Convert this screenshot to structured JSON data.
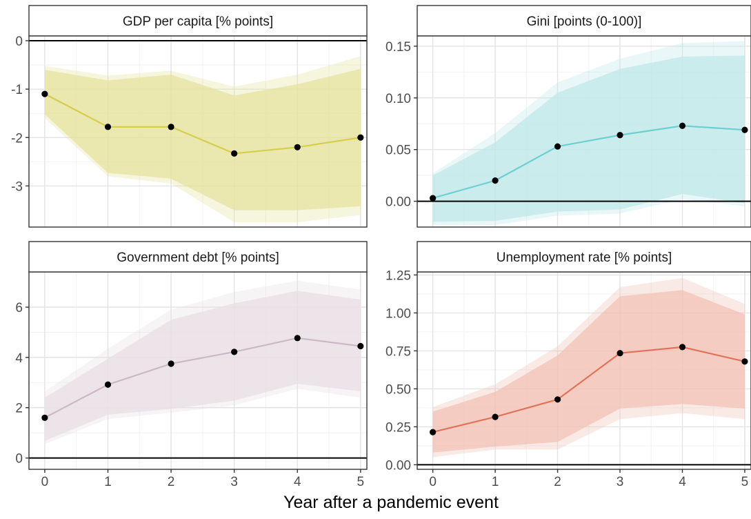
{
  "chart_data": {
    "type": "line",
    "xlabel": "Year after a pandemic event",
    "x": [
      0,
      1,
      2,
      3,
      4,
      5
    ],
    "xlim": [
      -0.25,
      5.1
    ],
    "grid": true,
    "panels": [
      {
        "title": "GDP per capita [% points]",
        "color": "#d4cf4a",
        "band_color": "#e6e39e",
        "ylim": [
          -3.85,
          0.1
        ],
        "yticks": [
          0,
          -1,
          -2,
          -3
        ],
        "ytick_labels": [
          "0",
          "-1",
          "-2",
          "-3"
        ],
        "y": [
          -1.1,
          -1.78,
          -1.78,
          -2.33,
          -2.2,
          -2.0
        ],
        "band_inner": {
          "lower": [
            -1.52,
            -2.73,
            -2.85,
            -3.5,
            -3.5,
            -3.42
          ],
          "upper": [
            -0.6,
            -0.82,
            -0.7,
            -1.13,
            -0.9,
            -0.58
          ]
        },
        "band_outer": {
          "lower": [
            -1.6,
            -2.8,
            -2.95,
            -3.75,
            -3.75,
            -3.6
          ],
          "upper": [
            -0.52,
            -0.72,
            -0.62,
            -0.95,
            -0.7,
            -0.32
          ]
        }
      },
      {
        "title": "Gini [points (0-100)]",
        "color": "#6dcfcf",
        "band_color": "#bfe8ea",
        "ylim": [
          -0.025,
          0.16
        ],
        "yticks": [
          0,
          0.05,
          0.1,
          0.15
        ],
        "ytick_labels": [
          "0.00",
          "0.05",
          "0.10",
          "0.15"
        ],
        "y": [
          0.003,
          0.02,
          0.053,
          0.064,
          0.073,
          0.069
        ],
        "band_inner": {
          "lower": [
            -0.02,
            -0.019,
            -0.01,
            -0.008,
            0.007,
            -0.002
          ],
          "upper": [
            0.025,
            0.057,
            0.105,
            0.128,
            0.14,
            0.141
          ]
        },
        "band_outer": {
          "lower": [
            -0.023,
            -0.023,
            -0.014,
            -0.012,
            0.002,
            -0.005
          ],
          "upper": [
            0.027,
            0.066,
            0.115,
            0.138,
            0.153,
            0.155
          ]
        }
      },
      {
        "title": "Government debt [% points]",
        "color": "#cab9c4",
        "band_color": "#e9dfe4",
        "ylim": [
          -0.45,
          7.4
        ],
        "yticks": [
          0,
          2,
          4,
          6
        ],
        "ytick_labels": [
          "0",
          "2",
          "4",
          "6"
        ],
        "y": [
          1.6,
          2.92,
          3.75,
          4.22,
          4.77,
          4.45
        ],
        "band_inner": {
          "lower": [
            0.68,
            1.72,
            1.95,
            2.28,
            2.95,
            2.65
          ],
          "upper": [
            2.4,
            3.95,
            5.5,
            6.15,
            6.65,
            6.3
          ]
        },
        "band_outer": {
          "lower": [
            0.55,
            1.55,
            1.8,
            2.1,
            2.75,
            2.4
          ],
          "upper": [
            2.65,
            4.35,
            5.9,
            6.6,
            7.05,
            6.7
          ]
        }
      },
      {
        "title": "Unemployment rate [% points]",
        "color": "#e0735a",
        "band_color": "#f2c2b6",
        "ylim": [
          -0.03,
          1.27
        ],
        "yticks": [
          0,
          0.25,
          0.5,
          0.75,
          1.0,
          1.25
        ],
        "ytick_labels": [
          "0.00",
          "0.25",
          "0.50",
          "0.75",
          "1.00",
          "1.25"
        ],
        "y": [
          0.215,
          0.315,
          0.43,
          0.735,
          0.775,
          0.68
        ],
        "band_inner": {
          "lower": [
            0.08,
            0.12,
            0.15,
            0.37,
            0.4,
            0.37
          ],
          "upper": [
            0.35,
            0.48,
            0.72,
            1.11,
            1.15,
            0.99
          ]
        },
        "band_outer": {
          "lower": [
            0.05,
            0.1,
            0.1,
            0.3,
            0.34,
            0.3
          ],
          "upper": [
            0.38,
            0.53,
            0.78,
            1.17,
            1.23,
            1.06
          ]
        }
      }
    ]
  }
}
